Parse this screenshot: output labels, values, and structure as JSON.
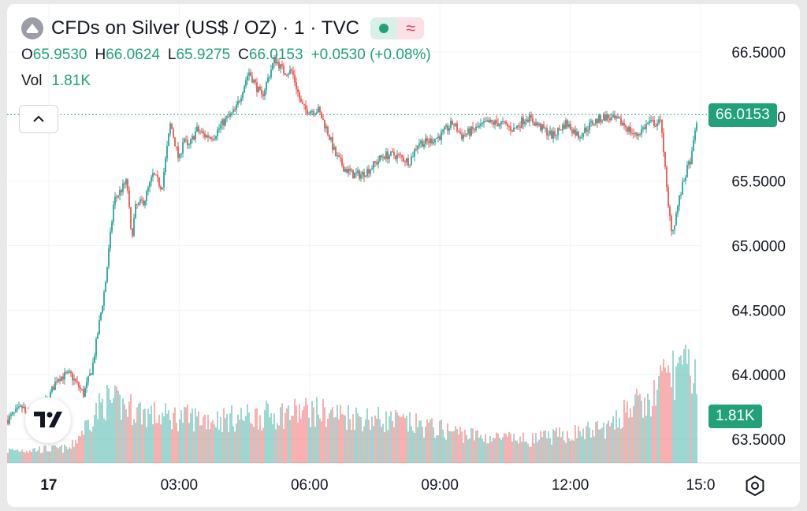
{
  "header": {
    "title": "CFDs on Silver (US$ / OZ) · 1 · TVC",
    "open_label": "O",
    "open": "65.9530",
    "high_label": "H",
    "high": "66.0624",
    "low_label": "L",
    "low": "65.9275",
    "close_label": "C",
    "close": "66.0153",
    "change": "+0.0530 (+0.08%)",
    "volume_label": "Vol",
    "volume": "1.81K",
    "status_icon": "market-open-dot",
    "delay_icon": "approx-icon"
  },
  "price_tags": {
    "last_price": "66.0153",
    "last_volume": "1.81K"
  },
  "icons": {
    "collapse": "chevron-up-icon",
    "brand": "tradingview-logo",
    "settings": "settings-hexagon-icon"
  },
  "colors": {
    "up": "#26a69a",
    "down": "#ef5350",
    "accent": "#22a07a",
    "grid": "#f0f3fa"
  },
  "chart_data": {
    "type": "candlestick",
    "title": "CFDs on Silver (US$ / OZ) · 1 · TVC",
    "y_axis": {
      "ticks": [
        "66.5000",
        "66.0000",
        "65.5000",
        "65.0000",
        "64.5000",
        "64.0000",
        "63.5000"
      ],
      "tick_values": [
        66.5,
        66.0,
        65.5,
        65.0,
        64.5,
        64.0,
        63.5
      ],
      "range": [
        63.32,
        66.72
      ],
      "position": "right"
    },
    "x_axis": {
      "ticks": [
        "17",
        "03:00",
        "06:00",
        "09:00",
        "12:00",
        "15:0"
      ],
      "tick_hours": [
        24,
        27,
        30,
        33,
        36,
        39
      ]
    },
    "time_range_hours": [
      23.04,
      39.0
    ],
    "price_path": {
      "time_hours": [
        23.04,
        23.4,
        23.6,
        24.0,
        24.2,
        24.5,
        24.8,
        25.0,
        25.3,
        25.5,
        25.8,
        25.9,
        26.0,
        26.2,
        26.4,
        26.6,
        26.8,
        27.0,
        27.1,
        27.2,
        27.4,
        27.6,
        27.8,
        28.0,
        28.3,
        28.6,
        28.9,
        29.2,
        29.4,
        29.6,
        29.8,
        29.9,
        30.2,
        30.4,
        30.6,
        30.8,
        31.0,
        31.2,
        31.4,
        31.7,
        32.0,
        32.3,
        32.5,
        32.7,
        33.0,
        33.3,
        33.5,
        33.8,
        34.1,
        34.4,
        34.7,
        35.0,
        35.3,
        35.6,
        35.9,
        36.2,
        36.5,
        36.8,
        37.2,
        37.5,
        37.8,
        38.1,
        38.25,
        38.35,
        38.5,
        38.65,
        38.8,
        38.92
      ],
      "price": [
        63.65,
        63.75,
        63.6,
        63.82,
        63.98,
        64.0,
        63.85,
        64.05,
        64.7,
        65.35,
        65.5,
        65.05,
        65.3,
        65.35,
        65.55,
        65.45,
        65.95,
        65.65,
        65.85,
        65.75,
        65.9,
        65.85,
        65.85,
        65.95,
        66.05,
        66.35,
        66.15,
        66.45,
        66.35,
        66.35,
        66.1,
        66.05,
        66.05,
        65.9,
        65.7,
        65.6,
        65.55,
        65.55,
        65.6,
        65.7,
        65.7,
        65.65,
        65.8,
        65.8,
        65.85,
        65.95,
        65.85,
        65.9,
        65.95,
        65.95,
        65.9,
        66.0,
        65.92,
        65.85,
        65.95,
        65.85,
        65.95,
        66.0,
        65.95,
        65.85,
        65.95,
        65.95,
        65.3,
        65.1,
        65.35,
        65.55,
        65.7,
        66.0
      ]
    },
    "volume": {
      "time_hours": [
        23.04,
        24.5,
        25.0,
        25.3,
        26.5,
        28.0,
        30.0,
        32.0,
        34.0,
        35.0,
        36.0,
        37.0,
        37.3,
        37.8,
        38.2,
        38.5,
        38.92
      ],
      "relative": [
        0.12,
        0.14,
        0.45,
        0.6,
        0.45,
        0.42,
        0.5,
        0.4,
        0.25,
        0.22,
        0.28,
        0.35,
        0.55,
        0.55,
        0.85,
        0.9,
        0.85
      ],
      "max_label": "1.81K"
    },
    "last_price": 66.0153,
    "last_volume": "1.81K"
  }
}
